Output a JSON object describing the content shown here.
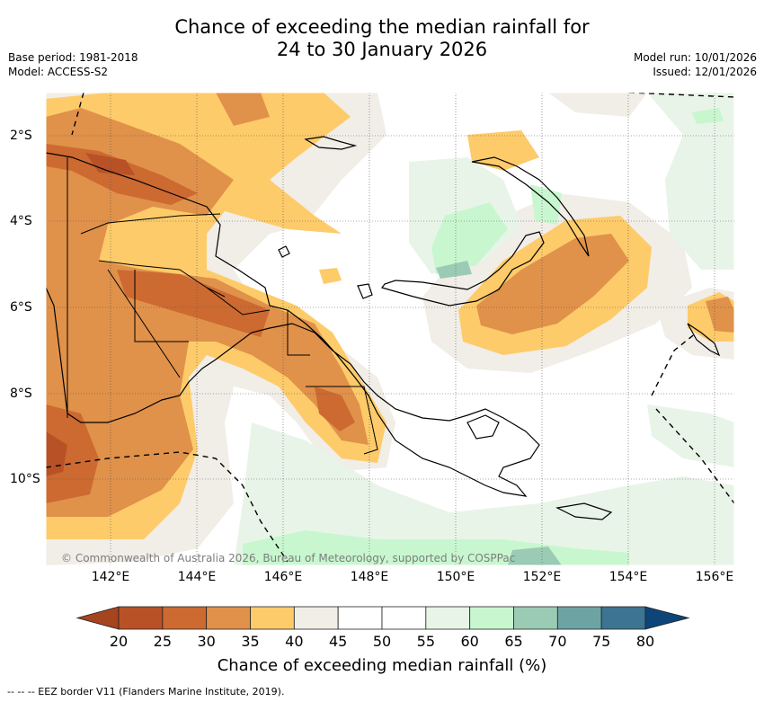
{
  "header": {
    "title_line1": "Chance of exceeding the median rainfall for",
    "title_line2": "24 to 30 January 2026",
    "base_period": "Base period: 1981-2018",
    "model": "Model: ACCESS-S2",
    "model_run": "Model run: 10/01/2026",
    "issued": "Issued: 12/01/2026"
  },
  "map": {
    "lon_labels": [
      "142°E",
      "144°E",
      "146°E",
      "148°E",
      "150°E",
      "152°E",
      "154°E",
      "156°E"
    ],
    "lat_labels": [
      "2°S",
      "4°S",
      "6°S",
      "8°S",
      "10°S"
    ],
    "copyright": "© Commonwealth of Australia 2026, Bureau of Meteorology, supported by COSPPac"
  },
  "colorbar": {
    "ticks": [
      "20",
      "25",
      "30",
      "35",
      "40",
      "45",
      "50",
      "55",
      "60",
      "65",
      "70",
      "75",
      "80"
    ],
    "colors": [
      "#a6441e",
      "#b85226",
      "#cc6a31",
      "#e0914a",
      "#fdcb6a",
      "#f1ede7",
      "#ffffff",
      "#ffffff",
      "#e9f4e8",
      "#c8f7cf",
      "#9ccbb5",
      "#6ea3a4",
      "#3d7492",
      "#0e4578"
    ],
    "label": "Chance of exceeding median rainfall (%)"
  },
  "footnote": "--  --  -- EEZ border V11 (Flanders Marine Institute, 2019)."
}
